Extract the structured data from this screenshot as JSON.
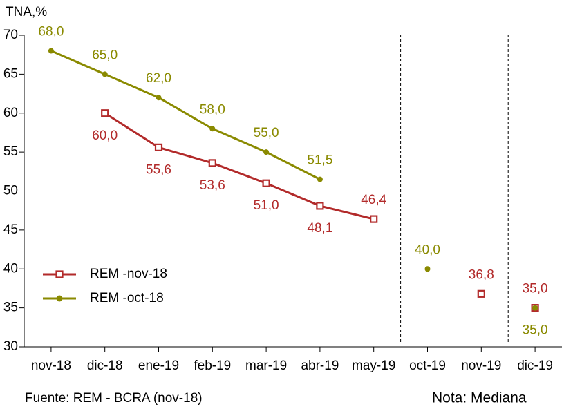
{
  "chart_data": {
    "type": "line",
    "y_axis_label": "TNA,%",
    "source": "Fuente: REM - BCRA (nov-18)",
    "note": "Nota: Mediana",
    "categories": [
      "nov-18",
      "dic-18",
      "ene-19",
      "feb-19",
      "mar-19",
      "abr-19",
      "may-19",
      "oct-19",
      "nov-19",
      "dic-19"
    ],
    "series": [
      {
        "name": "REM -nov-18",
        "color": "#b22a2a",
        "marker": "square",
        "values": [
          null,
          60.0,
          55.6,
          53.6,
          51.0,
          48.1,
          46.4,
          null,
          36.8,
          35.0
        ],
        "value_labels": [
          null,
          "60,0",
          "55,6",
          "53,6",
          "51,0",
          "48,1",
          "46,4",
          null,
          "36,8",
          "35,0"
        ]
      },
      {
        "name": "REM -oct-18",
        "color": "#8a8a00",
        "marker": "circle",
        "values": [
          68.0,
          65.0,
          62.0,
          58.0,
          55.0,
          51.5,
          null,
          40.0,
          null,
          35.0
        ],
        "value_labels": [
          "68,0",
          "65,0",
          "62,0",
          "58,0",
          "55,0",
          "51,5",
          null,
          "40,0",
          null,
          "35,0"
        ]
      }
    ],
    "ylim": [
      30,
      70
    ],
    "yticks": [
      30,
      35,
      40,
      45,
      50,
      55,
      60,
      65,
      70
    ],
    "grid": false
  }
}
